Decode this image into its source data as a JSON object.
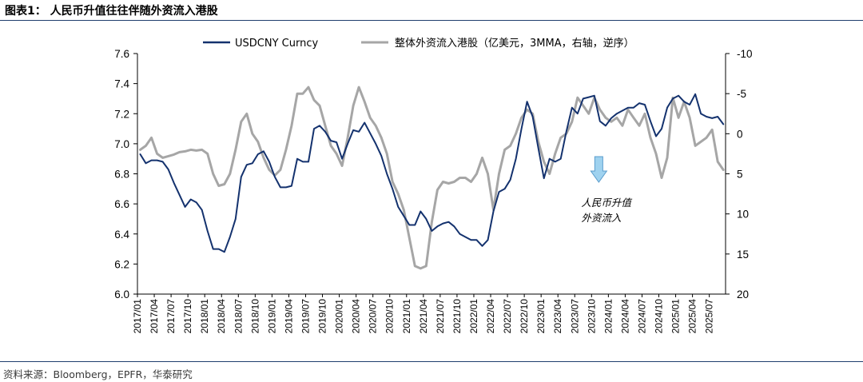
{
  "figure": {
    "title": "图表1： 人民币升值往往伴随外资流入港股",
    "source": "资料来源：Bloomberg，EPFR，华泰研究"
  },
  "chart_data": {
    "type": "line",
    "left_axis": {
      "ylim": [
        6.0,
        7.6
      ],
      "ticks": [
        "6.0",
        "6.2",
        "6.4",
        "6.6",
        "6.8",
        "7.0",
        "7.2",
        "7.4",
        "7.6"
      ]
    },
    "right_axis": {
      "ylim": [
        20,
        -10
      ],
      "inverted": true,
      "ticks": [
        "-10",
        "-5",
        "0",
        "5",
        "10",
        "15",
        "20"
      ]
    },
    "x_tick_labels": [
      "2017/01",
      "2017/04",
      "2017/07",
      "2017/10",
      "2018/01",
      "2018/04",
      "2018/07",
      "2018/10",
      "2019/01",
      "2019/04",
      "2019/07",
      "2019/10",
      "2020/01",
      "2020/04",
      "2020/07",
      "2020/10",
      "2021/01",
      "2021/04",
      "2021/07",
      "2021/10",
      "2022/01",
      "2022/04",
      "2022/07",
      "2022/10",
      "2023/01",
      "2023/04",
      "2023/07",
      "2023/10",
      "2024/01",
      "2024/04",
      "2024/07",
      "2024/10",
      "2025/01",
      "2025/04",
      "2025/07"
    ],
    "x_range": [
      "2017/01",
      "2025/09"
    ],
    "legend_position": "top",
    "grid": false,
    "series": [
      {
        "name": "USDCNY Curncy",
        "axis": "left",
        "color": "#14326e",
        "points": [
          [
            "2017/01",
            6.93
          ],
          [
            "2017/02",
            6.87
          ],
          [
            "2017/03",
            6.89
          ],
          [
            "2017/04",
            6.89
          ],
          [
            "2017/05",
            6.88
          ],
          [
            "2017/06",
            6.83
          ],
          [
            "2017/07",
            6.74
          ],
          [
            "2017/08",
            6.66
          ],
          [
            "2017/09",
            6.58
          ],
          [
            "2017/10",
            6.63
          ],
          [
            "2017/11",
            6.61
          ],
          [
            "2017/12",
            6.56
          ],
          [
            "2018/01",
            6.42
          ],
          [
            "2018/02",
            6.3
          ],
          [
            "2018/03",
            6.3
          ],
          [
            "2018/04",
            6.28
          ],
          [
            "2018/05",
            6.38
          ],
          [
            "2018/06",
            6.5
          ],
          [
            "2018/07",
            6.78
          ],
          [
            "2018/08",
            6.86
          ],
          [
            "2018/09",
            6.87
          ],
          [
            "2018/10",
            6.93
          ],
          [
            "2018/11",
            6.95
          ],
          [
            "2018/12",
            6.88
          ],
          [
            "2019/01",
            6.78
          ],
          [
            "2019/02",
            6.71
          ],
          [
            "2019/03",
            6.71
          ],
          [
            "2019/04",
            6.72
          ],
          [
            "2019/05",
            6.9
          ],
          [
            "2019/06",
            6.88
          ],
          [
            "2019/07",
            6.88
          ],
          [
            "2019/08",
            7.1
          ],
          [
            "2019/09",
            7.12
          ],
          [
            "2019/10",
            7.08
          ],
          [
            "2019/11",
            7.02
          ],
          [
            "2019/12",
            7.01
          ],
          [
            "2020/01",
            6.9
          ],
          [
            "2020/02",
            7.0
          ],
          [
            "2020/03",
            7.09
          ],
          [
            "2020/04",
            7.08
          ],
          [
            "2020/05",
            7.14
          ],
          [
            "2020/06",
            7.07
          ],
          [
            "2020/07",
            7.0
          ],
          [
            "2020/08",
            6.92
          ],
          [
            "2020/09",
            6.8
          ],
          [
            "2020/10",
            6.7
          ],
          [
            "2020/11",
            6.58
          ],
          [
            "2020/12",
            6.52
          ],
          [
            "2021/01",
            6.46
          ],
          [
            "2021/02",
            6.46
          ],
          [
            "2021/03",
            6.55
          ],
          [
            "2021/04",
            6.5
          ],
          [
            "2021/05",
            6.42
          ],
          [
            "2021/06",
            6.45
          ],
          [
            "2021/07",
            6.47
          ],
          [
            "2021/08",
            6.48
          ],
          [
            "2021/09",
            6.45
          ],
          [
            "2021/10",
            6.4
          ],
          [
            "2021/11",
            6.38
          ],
          [
            "2021/12",
            6.36
          ],
          [
            "2022/01",
            6.36
          ],
          [
            "2022/02",
            6.32
          ],
          [
            "2022/03",
            6.36
          ],
          [
            "2022/04",
            6.55
          ],
          [
            "2022/05",
            6.68
          ],
          [
            "2022/06",
            6.7
          ],
          [
            "2022/07",
            6.76
          ],
          [
            "2022/08",
            6.9
          ],
          [
            "2022/09",
            7.1
          ],
          [
            "2022/10",
            7.28
          ],
          [
            "2022/11",
            7.18
          ],
          [
            "2022/12",
            6.97
          ],
          [
            "2023/01",
            6.77
          ],
          [
            "2023/02",
            6.9
          ],
          [
            "2023/03",
            6.88
          ],
          [
            "2023/04",
            6.9
          ],
          [
            "2023/05",
            7.08
          ],
          [
            "2023/06",
            7.24
          ],
          [
            "2023/07",
            7.2
          ],
          [
            "2023/08",
            7.3
          ],
          [
            "2023/09",
            7.31
          ],
          [
            "2023/10",
            7.32
          ],
          [
            "2023/11",
            7.15
          ],
          [
            "2023/12",
            7.12
          ],
          [
            "2024/01",
            7.17
          ],
          [
            "2024/02",
            7.2
          ],
          [
            "2024/03",
            7.22
          ],
          [
            "2024/04",
            7.24
          ],
          [
            "2024/05",
            7.24
          ],
          [
            "2024/06",
            7.27
          ],
          [
            "2024/07",
            7.26
          ],
          [
            "2024/08",
            7.15
          ],
          [
            "2024/09",
            7.05
          ],
          [
            "2024/10",
            7.1
          ],
          [
            "2024/11",
            7.24
          ],
          [
            "2024/12",
            7.3
          ],
          [
            "2025/01",
            7.32
          ],
          [
            "2025/02",
            7.28
          ],
          [
            "2025/03",
            7.26
          ],
          [
            "2025/04",
            7.33
          ],
          [
            "2025/05",
            7.2
          ],
          [
            "2025/06",
            7.18
          ],
          [
            "2025/07",
            7.17
          ],
          [
            "2025/08",
            7.18
          ],
          [
            "2025/09",
            7.13
          ]
        ]
      },
      {
        "name": "整体外资流入港股（亿美元，3MMA，右轴，逆序）",
        "axis": "right",
        "color": "#a6a6a6",
        "points": [
          [
            "2017/01",
            2.0
          ],
          [
            "2017/02",
            1.5
          ],
          [
            "2017/03",
            0.5
          ],
          [
            "2017/04",
            2.5
          ],
          [
            "2017/05",
            3.0
          ],
          [
            "2017/06",
            2.8
          ],
          [
            "2017/07",
            2.6
          ],
          [
            "2017/08",
            2.3
          ],
          [
            "2017/09",
            2.2
          ],
          [
            "2017/10",
            2.0
          ],
          [
            "2017/11",
            2.1
          ],
          [
            "2017/12",
            2.0
          ],
          [
            "2018/01",
            2.5
          ],
          [
            "2018/02",
            5.0
          ],
          [
            "2018/03",
            6.5
          ],
          [
            "2018/04",
            6.3
          ],
          [
            "2018/05",
            5.0
          ],
          [
            "2018/06",
            2.0
          ],
          [
            "2018/07",
            -1.5
          ],
          [
            "2018/08",
            -2.5
          ],
          [
            "2018/09",
            0.0
          ],
          [
            "2018/10",
            1.0
          ],
          [
            "2018/11",
            3.0
          ],
          [
            "2018/12",
            4.5
          ],
          [
            "2019/01",
            5.2
          ],
          [
            "2019/02",
            4.5
          ],
          [
            "2019/03",
            2.0
          ],
          [
            "2019/04",
            -1.0
          ],
          [
            "2019/05",
            -5.0
          ],
          [
            "2019/06",
            -5.0
          ],
          [
            "2019/07",
            -5.8
          ],
          [
            "2019/08",
            -4.2
          ],
          [
            "2019/09",
            -3.5
          ],
          [
            "2019/10",
            -1.0
          ],
          [
            "2019/11",
            1.5
          ],
          [
            "2019/12",
            2.5
          ],
          [
            "2020/01",
            4.0
          ],
          [
            "2020/02",
            0.5
          ],
          [
            "2020/03",
            -3.5
          ],
          [
            "2020/04",
            -5.8
          ],
          [
            "2020/05",
            -4.0
          ],
          [
            "2020/06",
            -2.0
          ],
          [
            "2020/07",
            -1.0
          ],
          [
            "2020/08",
            0.5
          ],
          [
            "2020/09",
            2.5
          ],
          [
            "2020/10",
            6.0
          ],
          [
            "2020/11",
            7.5
          ],
          [
            "2020/12",
            9.5
          ],
          [
            "2021/01",
            13.0
          ],
          [
            "2021/02",
            16.5
          ],
          [
            "2021/03",
            16.8
          ],
          [
            "2021/04",
            16.5
          ],
          [
            "2021/05",
            11.0
          ],
          [
            "2021/06",
            7.0
          ],
          [
            "2021/07",
            6.0
          ],
          [
            "2021/08",
            6.2
          ],
          [
            "2021/09",
            6.0
          ],
          [
            "2021/10",
            5.5
          ],
          [
            "2021/11",
            5.5
          ],
          [
            "2021/12",
            6.0
          ],
          [
            "2022/01",
            5.0
          ],
          [
            "2022/02",
            3.0
          ],
          [
            "2022/03",
            5.0
          ],
          [
            "2022/04",
            9.5
          ],
          [
            "2022/05",
            5.0
          ],
          [
            "2022/06",
            2.0
          ],
          [
            "2022/07",
            1.5
          ],
          [
            "2022/08",
            0.0
          ],
          [
            "2022/09",
            -2.0
          ],
          [
            "2022/10",
            -3.0
          ],
          [
            "2022/11",
            -2.5
          ],
          [
            "2022/12",
            1.0
          ],
          [
            "2023/01",
            3.5
          ],
          [
            "2023/02",
            5.0
          ],
          [
            "2023/03",
            2.5
          ],
          [
            "2023/04",
            0.5
          ],
          [
            "2023/05",
            0.0
          ],
          [
            "2023/06",
            -1.5
          ],
          [
            "2023/07",
            -4.5
          ],
          [
            "2023/08",
            -3.5
          ],
          [
            "2023/09",
            -2.5
          ],
          [
            "2023/10",
            -4.5
          ],
          [
            "2023/11",
            -3.0
          ],
          [
            "2023/12",
            -2.0
          ],
          [
            "2024/01",
            -1.5
          ],
          [
            "2024/02",
            -2.0
          ],
          [
            "2024/03",
            -1.0
          ],
          [
            "2024/04",
            -3.0
          ],
          [
            "2024/05",
            -2.0
          ],
          [
            "2024/06",
            -1.0
          ],
          [
            "2024/07",
            -2.5
          ],
          [
            "2024/08",
            0.5
          ],
          [
            "2024/09",
            2.5
          ],
          [
            "2024/10",
            5.5
          ],
          [
            "2024/11",
            3.0
          ],
          [
            "2024/12",
            -4.5
          ],
          [
            "2025/01",
            -2.0
          ],
          [
            "2025/02",
            -4.0
          ],
          [
            "2025/03",
            -2.0
          ],
          [
            "2025/04",
            1.5
          ],
          [
            "2025/05",
            1.0
          ],
          [
            "2025/06",
            0.5
          ],
          [
            "2025/07",
            -0.5
          ],
          [
            "2025/08",
            3.5
          ],
          [
            "2025/09",
            4.5
          ]
        ]
      }
    ],
    "annotation": {
      "lines": [
        "人民币升值",
        "外资流入"
      ],
      "arrow": "down",
      "arrow_color": "#9fd2ef",
      "at": "2023/12"
    }
  }
}
